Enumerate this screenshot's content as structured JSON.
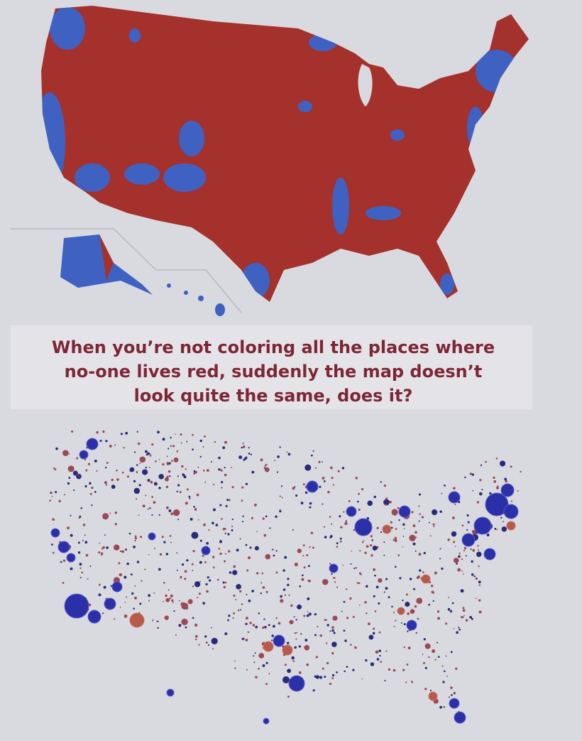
{
  "caption": {
    "lines": [
      "When you’re not coloring all the places where",
      "no-one lives red, suddenly the map doesn’t",
      "look quite the same, does it?"
    ]
  }
}
